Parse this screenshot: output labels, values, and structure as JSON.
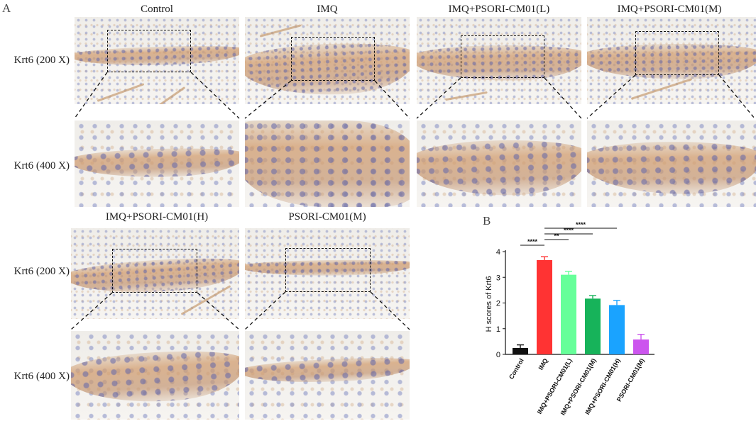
{
  "panels": {
    "a_label": "A",
    "b_label": "B"
  },
  "columns_top": [
    "Control",
    "IMQ",
    "IMQ+PSORI-CM01(L)",
    "IMQ+PSORI-CM01(M)"
  ],
  "columns_bottom": [
    "IMQ+PSORI-CM01(H)",
    "PSORI-CM01(M)"
  ],
  "row_labels": {
    "low_mag": "Krt6 (200 X)",
    "high_mag": "Krt6 (400 X)"
  },
  "chart_data": {
    "type": "bar",
    "title": "",
    "xlabel": "",
    "ylabel": "H scores of Krt6",
    "ylim": [
      0,
      4
    ],
    "yticks": [
      0,
      1,
      2,
      3,
      4
    ],
    "categories": [
      "Control",
      "IMQ",
      "IMQ+PSORI-CM01(L)",
      "IMQ+PSORI-CM01(M)",
      "IMQ+PSORI-CM01(H)",
      "PSORI-CM01(M)"
    ],
    "values": [
      0.25,
      3.67,
      3.1,
      2.17,
      1.92,
      0.58
    ],
    "errors": [
      0.12,
      0.13,
      0.13,
      0.12,
      0.18,
      0.2
    ],
    "colors": [
      "#111111",
      "#ff3333",
      "#66ff99",
      "#17b35a",
      "#1aa3ff",
      "#cc55ee"
    ],
    "significance": [
      {
        "from": 0,
        "to": 1,
        "label": "****"
      },
      {
        "from": 1,
        "to": 2,
        "label": "**"
      },
      {
        "from": 1,
        "to": 3,
        "label": "****"
      },
      {
        "from": 1,
        "to": 4,
        "label": "****"
      }
    ]
  }
}
